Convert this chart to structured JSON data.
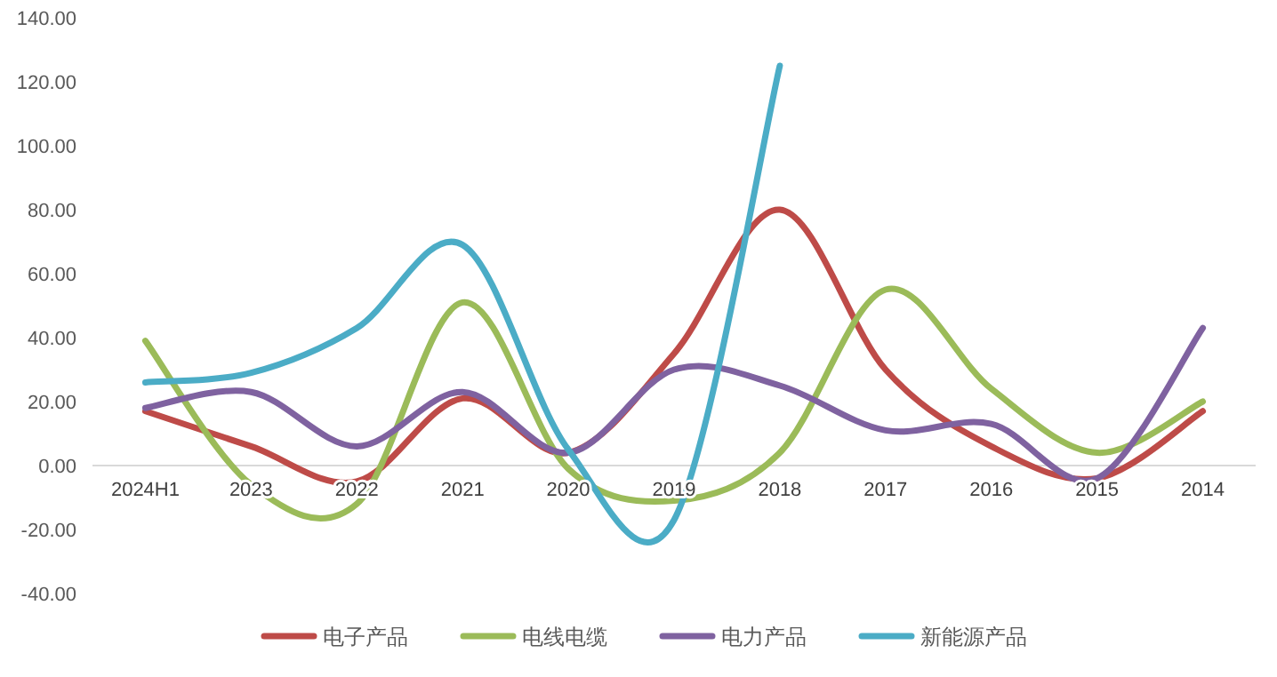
{
  "chart_data": {
    "type": "line",
    "categories": [
      "2024H1",
      "2023",
      "2022",
      "2021",
      "2020",
      "2019",
      "2018",
      "2017",
      "2016",
      "2015",
      "2014"
    ],
    "series": [
      {
        "name": "电子产品",
        "color": "#be4b48",
        "values": [
          17,
          6,
          -5,
          21,
          4,
          35,
          80,
          30,
          6,
          -4,
          17
        ]
      },
      {
        "name": "电线电缆",
        "color": "#9bbb59",
        "values": [
          39,
          -6,
          -12,
          51,
          -1,
          -11,
          4,
          55,
          24,
          4,
          20
        ]
      },
      {
        "name": "电力产品",
        "color": "#7f62a0",
        "values": [
          18,
          23,
          6,
          23,
          4,
          30,
          25,
          11,
          13,
          -4,
          43
        ]
      },
      {
        "name": "新能源产品",
        "color": "#4bacc6",
        "values": [
          26,
          29,
          43,
          69,
          5,
          -17,
          125,
          null,
          null,
          null,
          null
        ]
      }
    ],
    "ylim": [
      -40,
      140
    ],
    "yticks": [
      {
        "value": -40,
        "label": "-40.00"
      },
      {
        "value": -20,
        "label": "-20.00"
      },
      {
        "value": 0,
        "label": "0.00"
      },
      {
        "value": 20,
        "label": "20.00"
      },
      {
        "value": 40,
        "label": "40.00"
      },
      {
        "value": 60,
        "label": "60.00"
      },
      {
        "value": 80,
        "label": "80.00"
      },
      {
        "value": 100,
        "label": "100.00"
      },
      {
        "value": 120,
        "label": "120.00"
      },
      {
        "value": 140,
        "label": "140.00"
      }
    ],
    "legend": "bottom",
    "marker": "none",
    "line_style": "solid",
    "grid": false
  }
}
